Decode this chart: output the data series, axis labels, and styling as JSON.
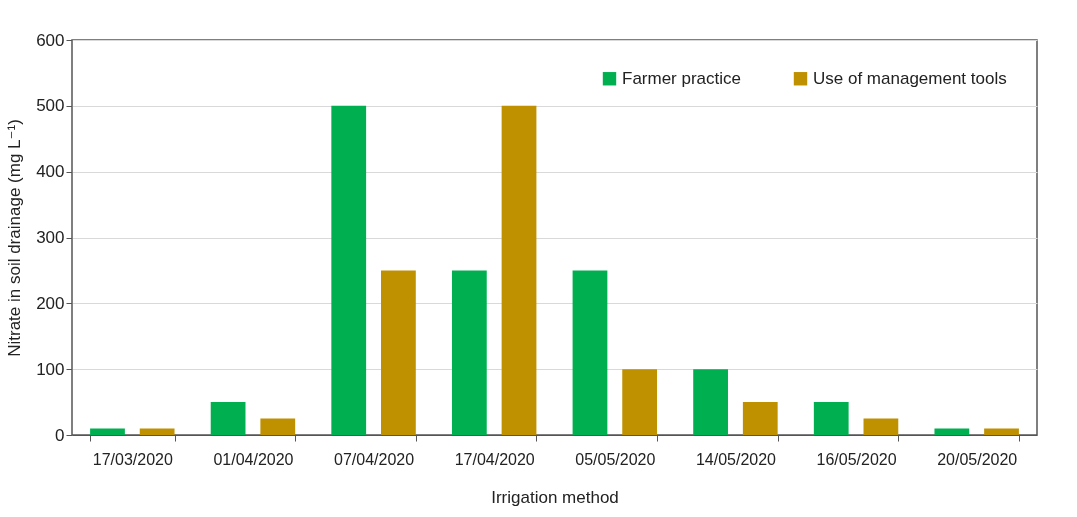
{
  "chart_data": {
    "type": "bar",
    "xlabel": "Irrigation method",
    "ylabel": "Nitrate in soil drainage (mg L⁻¹)",
    "categories": [
      "17/03/2020",
      "01/04/2020",
      "07/04/2020",
      "17/04/2020",
      "05/05/2020",
      "14/05/2020",
      "16/05/2020",
      "20/05/2020"
    ],
    "series": [
      {
        "name": "Farmer practice",
        "color": "#00b050",
        "values": [
          10,
          50,
          500,
          250,
          250,
          100,
          50,
          10
        ]
      },
      {
        "name": "Use of management tools",
        "color": "#bf9000",
        "values": [
          10,
          25,
          250,
          500,
          100,
          50,
          25,
          10
        ]
      }
    ],
    "ylim": [
      0,
      600
    ],
    "yticks": [
      0,
      100,
      200,
      300,
      400,
      500,
      600
    ],
    "grid": "y",
    "legend": "top right"
  }
}
